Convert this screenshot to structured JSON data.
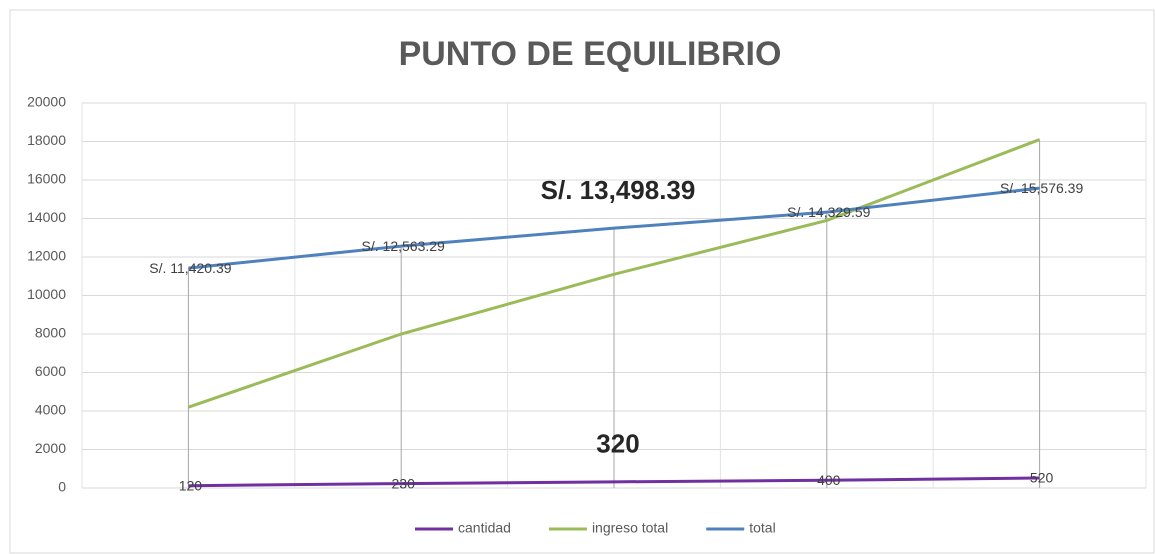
{
  "chart_data": {
    "type": "line",
    "title": "PUNTO DE EQUILIBRIO",
    "categories": [
      null,
      null,
      null,
      null,
      null
    ],
    "series": [
      {
        "name": "cantidad",
        "color": "#7030a0",
        "values": [
          120,
          230,
          320,
          400,
          520
        ]
      },
      {
        "name": "ingreso total",
        "color": "#9bbb59",
        "values": [
          4200,
          8000,
          11100,
          13900,
          18100
        ]
      },
      {
        "name": "total",
        "color": "#4f81bd",
        "values": [
          11420.39,
          12563.29,
          13498.39,
          14329.59,
          15576.39
        ],
        "value_labels": [
          "S/. 11,420.39",
          "S/. 12,563.29",
          "S/. 13,498.39",
          "S/. 14,329.59",
          "S/. 15,576.39"
        ]
      }
    ],
    "ylim": [
      0,
      20000
    ],
    "yticks": [
      0,
      2000,
      4000,
      6000,
      8000,
      10000,
      12000,
      14000,
      16000,
      18000,
      20000
    ],
    "grid": true,
    "legend": "bottom"
  }
}
